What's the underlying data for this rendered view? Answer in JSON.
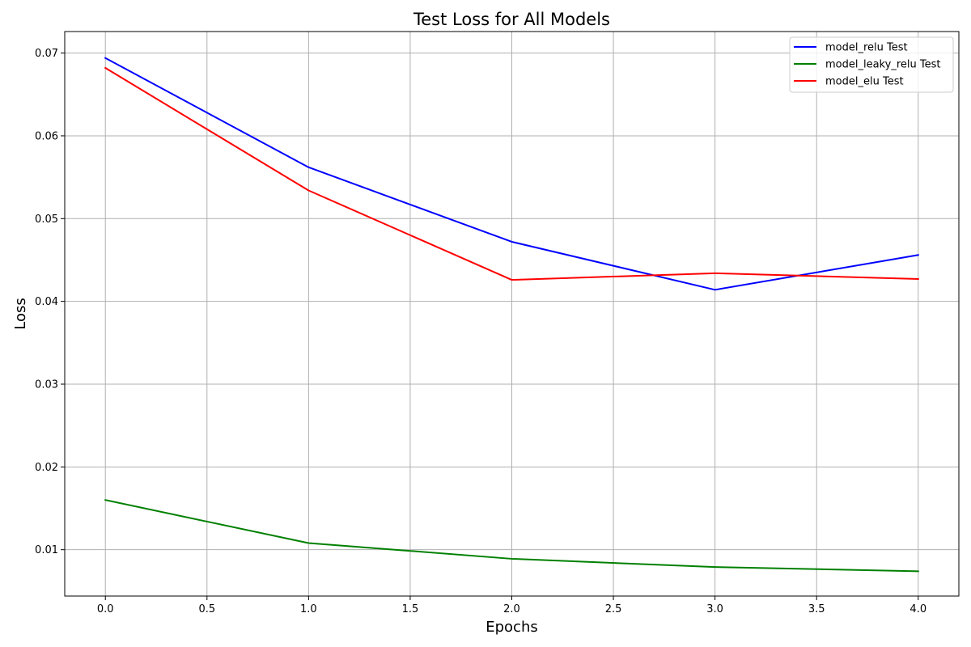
{
  "chart_data": {
    "type": "line",
    "title": "Test Loss for All Models",
    "xlabel": "Epochs",
    "ylabel": "Loss",
    "x": [
      0,
      1,
      2,
      3,
      4
    ],
    "xlim": [
      -0.2,
      4.2
    ],
    "ylim": [
      0.0044,
      0.0726
    ],
    "xticks": [
      0.0,
      0.5,
      1.0,
      1.5,
      2.0,
      2.5,
      3.0,
      3.5,
      4.0
    ],
    "xtick_labels": [
      "0.0",
      "0.5",
      "1.0",
      "1.5",
      "2.0",
      "2.5",
      "3.0",
      "3.5",
      "4.0"
    ],
    "yticks": [
      0.01,
      0.02,
      0.03,
      0.04,
      0.05,
      0.06,
      0.07
    ],
    "ytick_labels": [
      "0.01",
      "0.02",
      "0.03",
      "0.04",
      "0.05",
      "0.06",
      "0.07"
    ],
    "grid": true,
    "legend_position": "top-right",
    "series": [
      {
        "name": "model_relu Test",
        "color": "#0000ff",
        "values": [
          0.0694,
          0.0562,
          0.0472,
          0.0414,
          0.0456
        ]
      },
      {
        "name": "model_leaky_relu Test",
        "color": "#008000",
        "values": [
          0.016,
          0.0108,
          0.0089,
          0.0079,
          0.0074
        ]
      },
      {
        "name": "model_elu Test",
        "color": "#ff0000",
        "values": [
          0.0682,
          0.0534,
          0.0426,
          0.0434,
          0.0427
        ]
      }
    ]
  }
}
